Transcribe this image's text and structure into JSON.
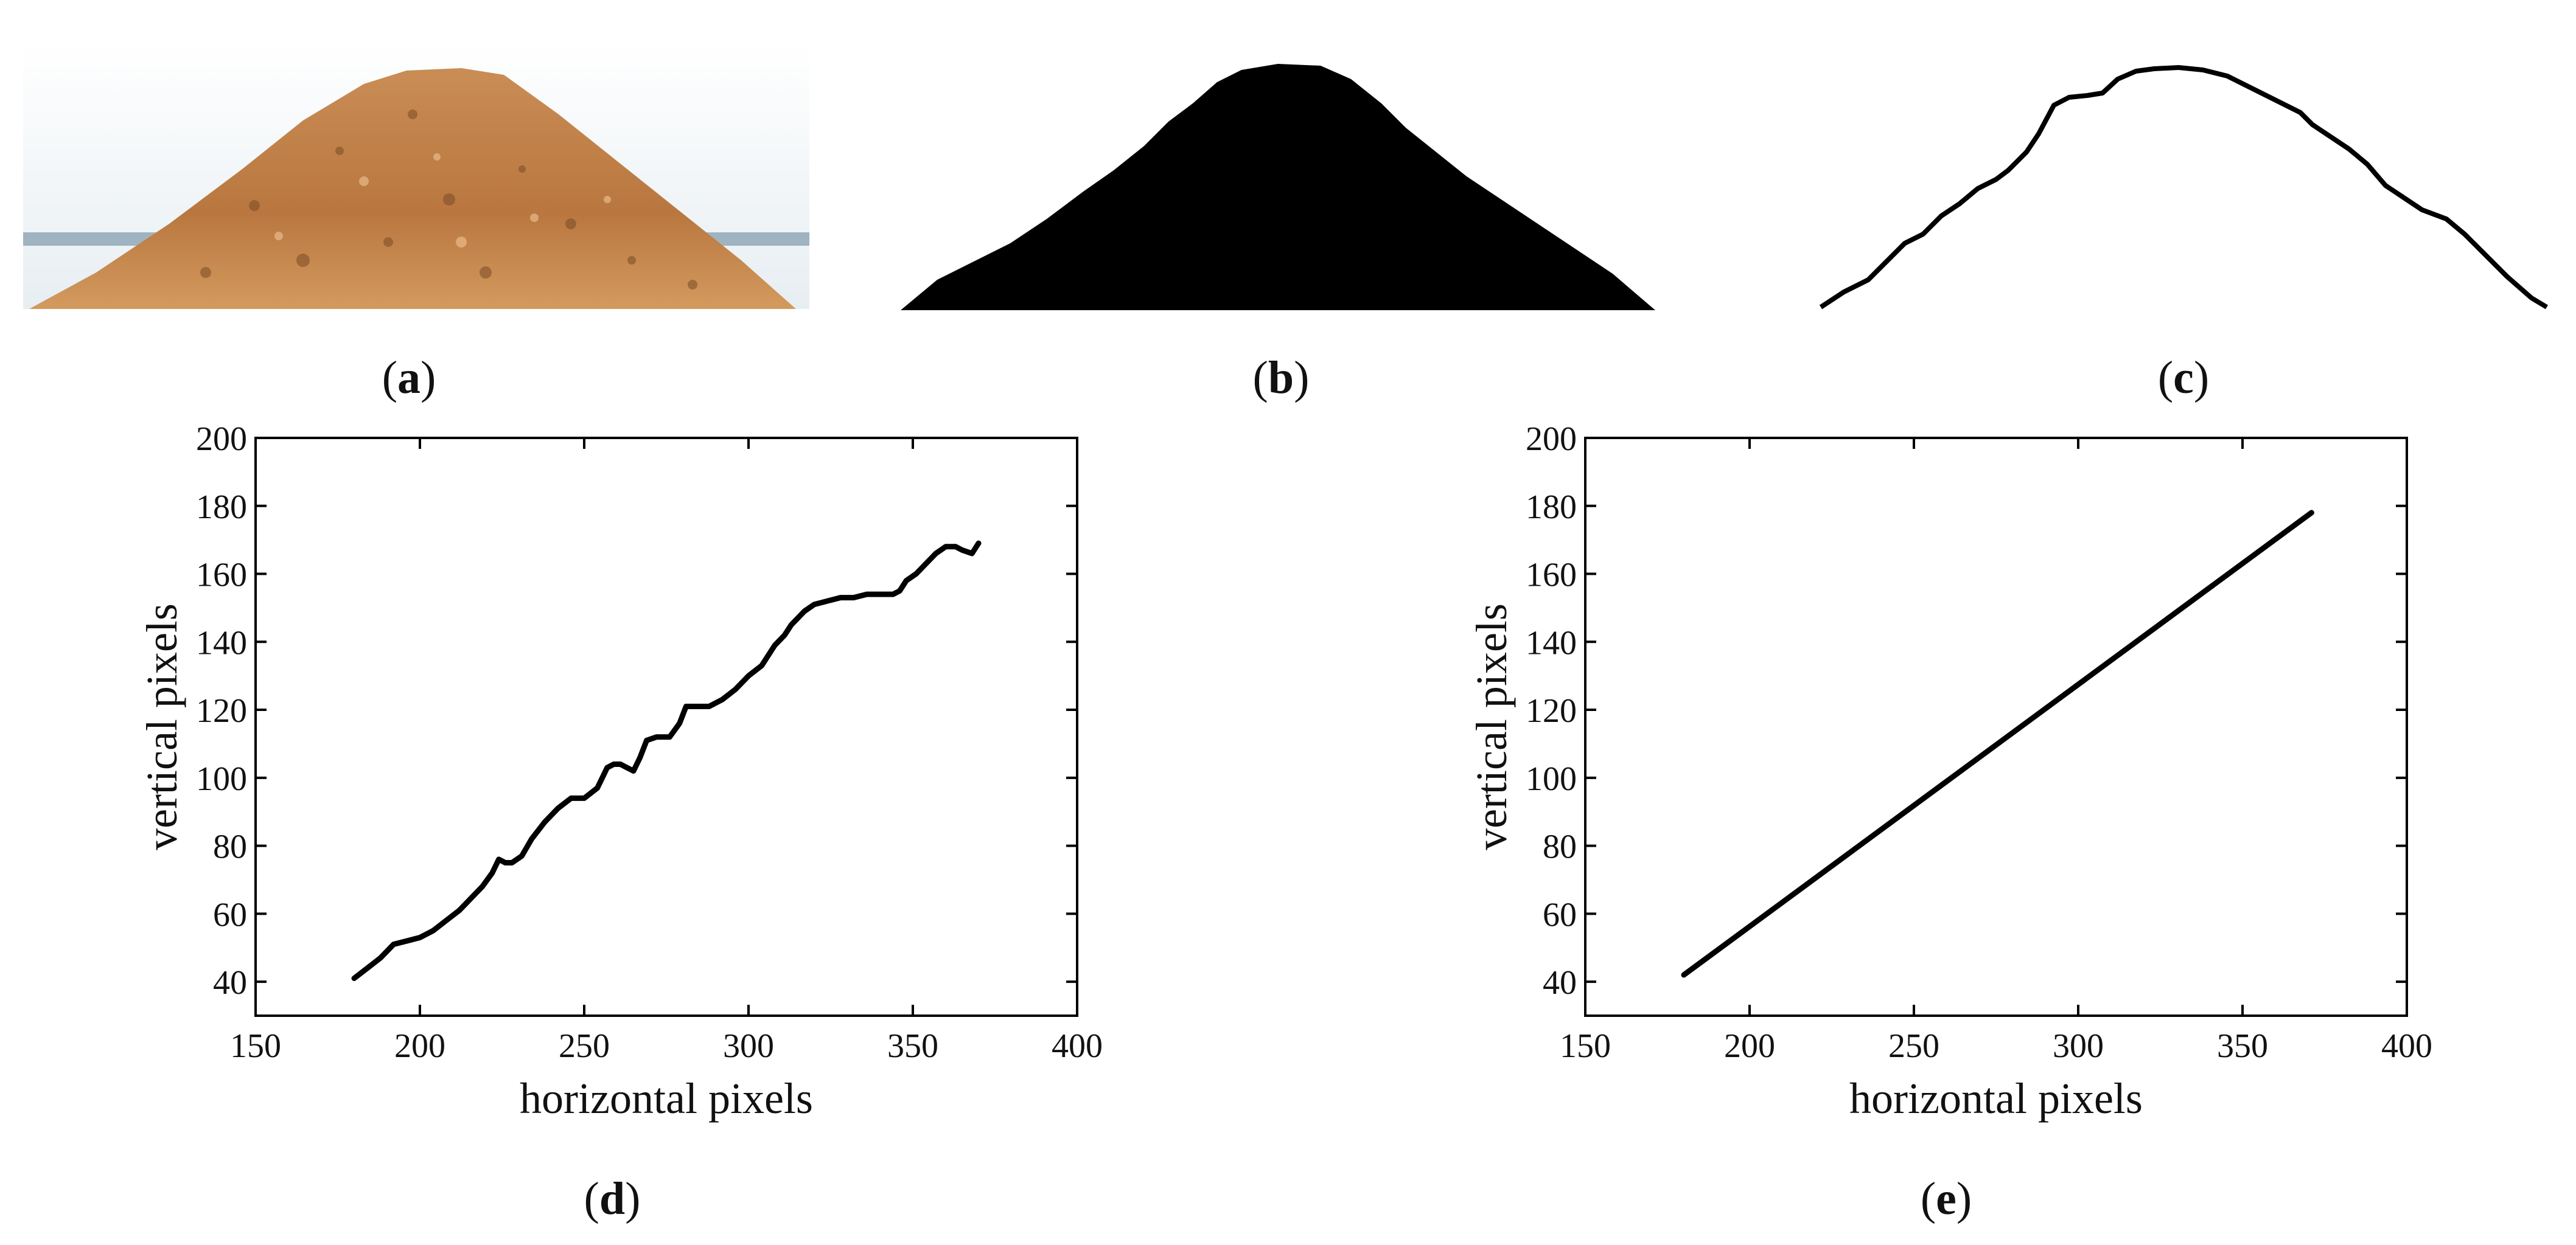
{
  "panels": {
    "a": {
      "letter": "a"
    },
    "b": {
      "letter": "b"
    },
    "c": {
      "letter": "c"
    },
    "d": {
      "letter": "d"
    },
    "e": {
      "letter": "e"
    }
  },
  "colors": {
    "line": "#000000",
    "sand_light": "#d9a56b",
    "sand_dark": "#8f5a2f",
    "sky": "#eef3f6",
    "silhouette": "#000000"
  },
  "chart_data": [
    {
      "id": "d",
      "type": "line",
      "xlabel": "horizontal pixels",
      "ylabel": "vertical pixels",
      "xlim": [
        150,
        400
      ],
      "ylim": [
        30,
        200
      ],
      "xticks": [
        150,
        200,
        250,
        300,
        350,
        400
      ],
      "yticks": [
        40,
        60,
        80,
        100,
        120,
        140,
        160,
        180,
        200
      ],
      "grid": false,
      "series": [
        {
          "x": [
            180,
            184,
            188,
            192,
            196,
            200,
            204,
            208,
            212,
            216,
            219,
            222,
            224,
            226,
            228,
            231,
            234,
            238,
            242,
            246,
            250,
            254,
            257,
            259,
            261,
            263,
            265,
            267,
            269,
            272,
            276,
            279,
            281,
            284,
            288,
            292,
            296,
            300,
            304,
            308,
            311,
            313,
            315,
            317,
            320,
            324,
            328,
            332,
            336,
            340,
            344,
            346,
            348,
            351,
            354,
            357,
            360,
            363,
            365,
            368,
            370
          ],
          "y": [
            41,
            44,
            47,
            51,
            52,
            53,
            55,
            58,
            61,
            65,
            68,
            72,
            76,
            75,
            75,
            77,
            82,
            87,
            91,
            94,
            94,
            97,
            103,
            104,
            104,
            103,
            102,
            106,
            111,
            112,
            112,
            116,
            121,
            121,
            121,
            123,
            126,
            130,
            133,
            139,
            142,
            145,
            147,
            149,
            151,
            152,
            153,
            153,
            154,
            154,
            154,
            155,
            158,
            160,
            163,
            166,
            168,
            168,
            167,
            166,
            169
          ]
        }
      ]
    },
    {
      "id": "e",
      "type": "line",
      "xlabel": "horizontal pixels",
      "ylabel": "vertical pixels",
      "xlim": [
        150,
        400
      ],
      "ylim": [
        30,
        200
      ],
      "xticks": [
        150,
        200,
        250,
        300,
        350,
        400
      ],
      "yticks": [
        40,
        60,
        80,
        100,
        120,
        140,
        160,
        180,
        200
      ],
      "grid": false,
      "series": [
        {
          "x": [
            180,
            371
          ],
          "y": [
            42,
            178
          ]
        }
      ]
    }
  ]
}
